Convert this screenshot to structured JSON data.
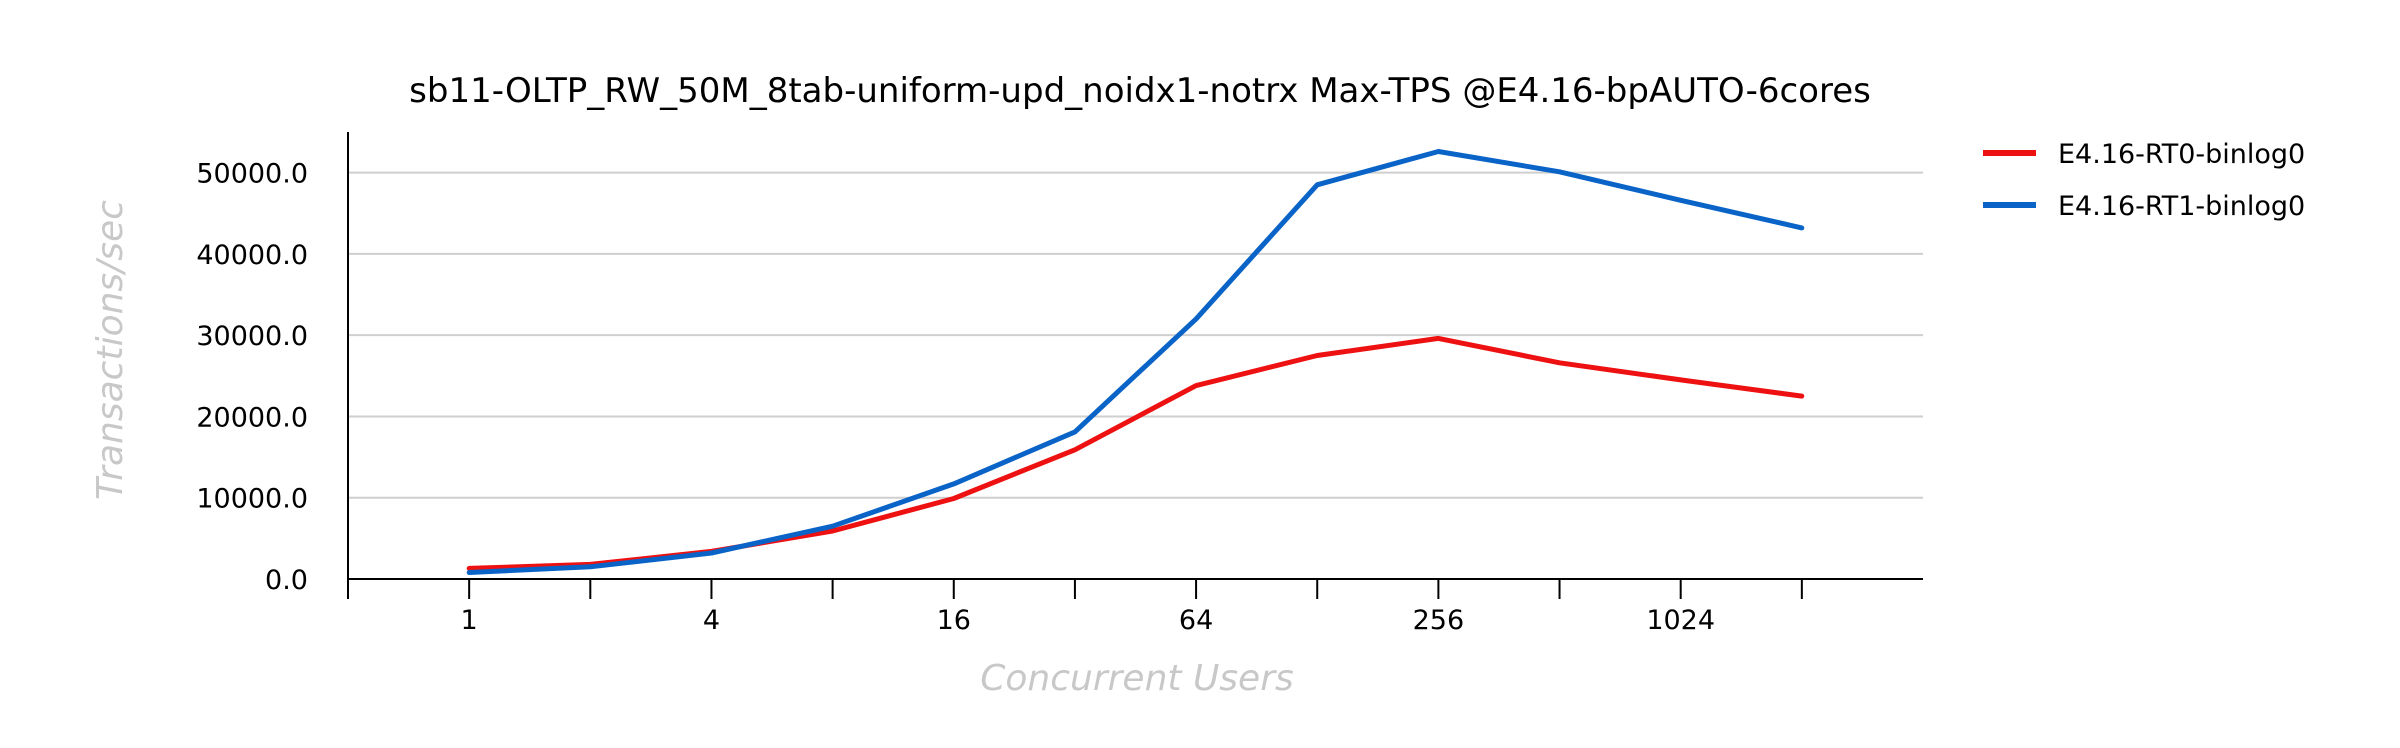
{
  "chart_data": {
    "type": "line",
    "title": "sb11-OLTP_RW_50M_8tab-uniform-upd_noidx1-notrx Max-TPS @E4.16-bpAUTO-6cores",
    "xlabel": "Concurrent Users",
    "ylabel": "Transactions/sec",
    "x_scale": "log2",
    "x": [
      1,
      2,
      4,
      8,
      16,
      32,
      64,
      128,
      256,
      512,
      1024,
      2048
    ],
    "x_ticks": [
      1,
      2,
      4,
      8,
      16,
      32,
      64,
      128,
      256,
      512,
      1024,
      2048
    ],
    "x_tick_labels": [
      "1",
      "",
      "4",
      "",
      "16",
      "",
      "64",
      "",
      "256",
      "",
      "1024",
      ""
    ],
    "xlim": [
      0.5,
      4096
    ],
    "ylim": [
      0,
      55000
    ],
    "y_ticks": [
      0,
      10000,
      20000,
      30000,
      40000,
      50000
    ],
    "y_tick_labels": [
      "0.0",
      "10000.0",
      "20000.0",
      "30000.0",
      "40000.0",
      "50000.0"
    ],
    "grid": "horizontal",
    "legend_position": "right",
    "series": [
      {
        "name": "E4.16-RT0-binlog0",
        "color": "#ee1111",
        "values": [
          1300,
          1800,
          3400,
          5900,
          9900,
          15900,
          23800,
          27500,
          29600,
          26600,
          24500,
          22500
        ]
      },
      {
        "name": "E4.16-RT1-binlog0",
        "color": "#0a64c8",
        "values": [
          800,
          1500,
          3200,
          6500,
          11700,
          18100,
          32000,
          48500,
          52600,
          50100,
          46600,
          43200
        ]
      }
    ]
  }
}
